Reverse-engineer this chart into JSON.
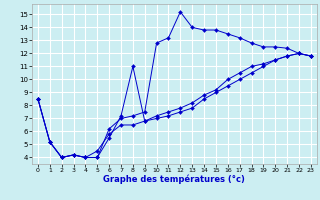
{
  "xlabel": "Graphe des températures (°c)",
  "background_color": "#cceef2",
  "line_color": "#0000cc",
  "grid_color": "#ffffff",
  "xlim": [
    -0.5,
    23.5
  ],
  "ylim": [
    3.5,
    15.8
  ],
  "xticks": [
    0,
    1,
    2,
    3,
    4,
    5,
    6,
    7,
    8,
    9,
    10,
    11,
    12,
    13,
    14,
    15,
    16,
    17,
    18,
    19,
    20,
    21,
    22,
    23
  ],
  "yticks": [
    4,
    5,
    6,
    7,
    8,
    9,
    10,
    11,
    12,
    13,
    14,
    15
  ],
  "series": [
    {
      "x": [
        0,
        1,
        2,
        3,
        4,
        5,
        6,
        7,
        8,
        9,
        10,
        11,
        12,
        13,
        14,
        15,
        16,
        17,
        18,
        19,
        20,
        21,
        22,
        23
      ],
      "y": [
        8.5,
        5.2,
        4.0,
        4.2,
        4.0,
        4.0,
        6.2,
        7.0,
        7.2,
        7.5,
        12.8,
        13.2,
        15.2,
        14.0,
        13.8,
        13.8,
        13.5,
        13.2,
        12.8,
        12.5,
        12.5,
        12.4,
        12.0,
        11.8
      ]
    },
    {
      "x": [
        0,
        1,
        2,
        3,
        4,
        5,
        6,
        7,
        8,
        9,
        10,
        11,
        12,
        13,
        14,
        15,
        16,
        17,
        18,
        19,
        20,
        21,
        22,
        23
      ],
      "y": [
        8.5,
        5.2,
        4.0,
        4.2,
        4.0,
        4.0,
        5.5,
        7.2,
        11.0,
        6.8,
        7.0,
        7.2,
        7.5,
        7.8,
        8.5,
        9.0,
        9.5,
        10.0,
        10.5,
        11.0,
        11.5,
        11.8,
        12.0,
        11.8
      ]
    },
    {
      "x": [
        0,
        1,
        2,
        3,
        4,
        5,
        6,
        7,
        8,
        9,
        10,
        11,
        12,
        13,
        14,
        15,
        16,
        17,
        18,
        19,
        20,
        21,
        22,
        23
      ],
      "y": [
        8.5,
        5.2,
        4.0,
        4.2,
        4.0,
        4.5,
        5.8,
        6.5,
        6.5,
        6.8,
        7.2,
        7.5,
        7.8,
        8.2,
        8.8,
        9.2,
        10.0,
        10.5,
        11.0,
        11.2,
        11.5,
        11.8,
        12.0,
        11.8
      ]
    }
  ]
}
